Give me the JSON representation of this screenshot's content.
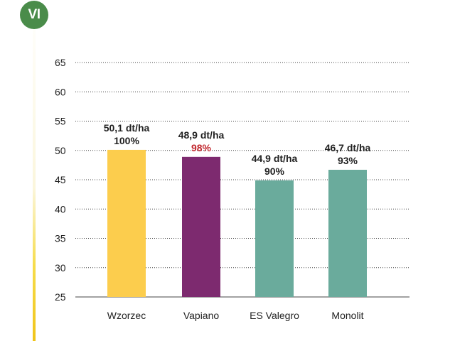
{
  "badge": {
    "label": "VI",
    "color": "#4a8c4a"
  },
  "chart_data": {
    "type": "bar",
    "categories": [
      "Wzorzec",
      "Vapiano",
      "ES Valegro",
      "Monolit"
    ],
    "values": [
      50.1,
      48.9,
      44.9,
      46.7
    ],
    "value_labels": [
      "50,1 dt/ha",
      "48,9 dt/ha",
      "44,9 dt/ha",
      "46,7 dt/ha"
    ],
    "percent_labels": [
      "100%",
      "98%",
      "90%",
      "93%"
    ],
    "bar_colors": [
      "#fccd4d",
      "#7d2a6f",
      "#6aab9c",
      "#6aab9c"
    ],
    "percent_colors": [
      "#222222",
      "#c1272d",
      "#222222",
      "#222222"
    ],
    "y_ticks": [
      25,
      30,
      35,
      40,
      45,
      50,
      55,
      60,
      65
    ],
    "ylim": [
      25,
      65
    ],
    "grid": true,
    "grid_style": "dotted",
    "title": "",
    "xlabel": "",
    "ylabel": ""
  }
}
